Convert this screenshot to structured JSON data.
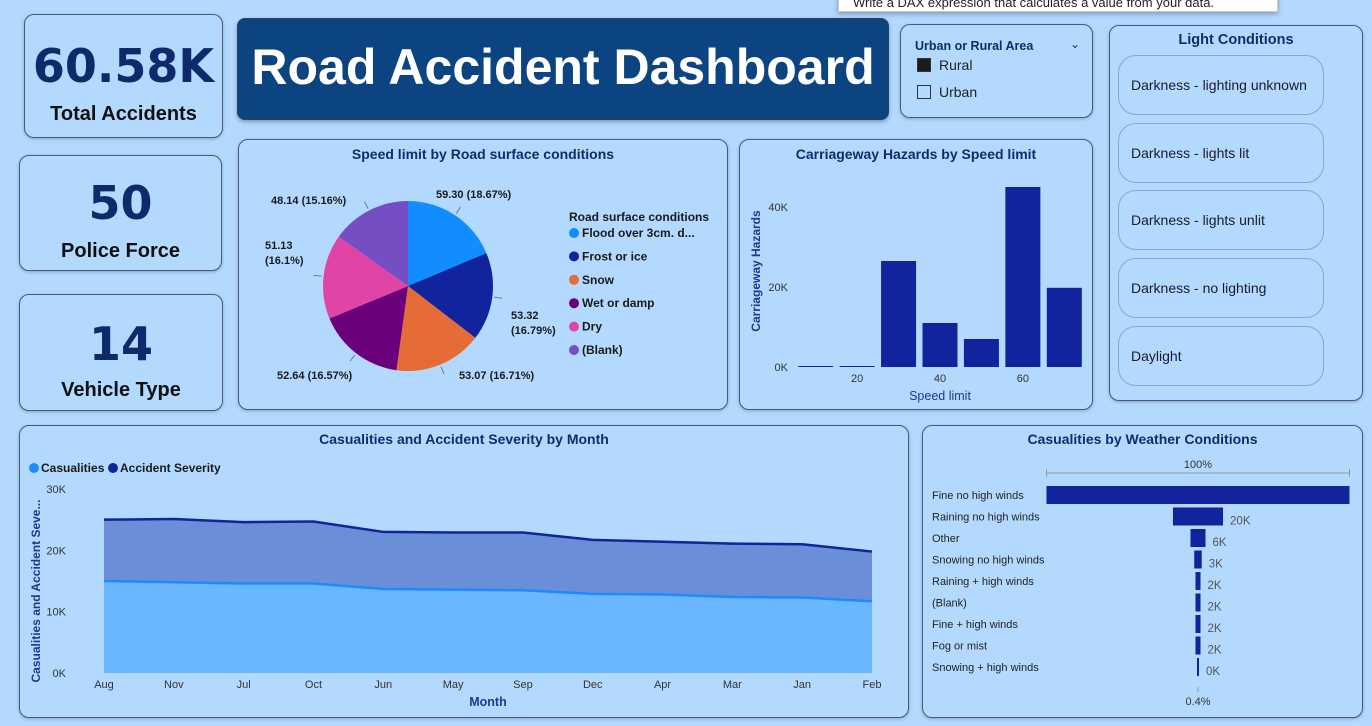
{
  "tooltip": "Write a DAX expression that calculates a value from your data.",
  "title": "Road Accident Dashboard",
  "kpis": [
    {
      "value": "60.58K",
      "label": "Total Accidents"
    },
    {
      "value": "50",
      "label": "Police Force"
    },
    {
      "value": "14",
      "label": "Vehicle Type"
    }
  ],
  "area_slicer": {
    "title": "Urban or Rural Area",
    "items": [
      {
        "label": "Rural",
        "checked": true
      },
      {
        "label": "Urban",
        "checked": false
      }
    ]
  },
  "light_conditions": {
    "title": "Light Conditions",
    "items": [
      "Darkness - lighting unknown",
      "Darkness - lights lit",
      "Darkness - lights unlit",
      "Darkness - no lighting",
      "Daylight"
    ]
  },
  "colors": {
    "navy": "#12239e",
    "pie": [
      "#118dff",
      "#12239e",
      "#e66c37",
      "#6b007b",
      "#e044a7",
      "#744ec2"
    ],
    "casualties_area": "#6ab7ff",
    "casualties_line": "#1a8cff",
    "severity_area": "#6a8ed8",
    "severity_line": "#12239e"
  },
  "chart_data": [
    {
      "type": "pie",
      "title": "Speed limit by Road surface conditions",
      "legend_title": "Road surface conditions",
      "legend": "right",
      "slices": [
        {
          "name": "Flood over 3cm. d...",
          "value": 59.3,
          "pct": "18.67%",
          "label": "59.30 (18.67%)"
        },
        {
          "name": "Frost or ice",
          "value": 53.32,
          "pct": "16.79%",
          "label": "53.32 (16.79%)"
        },
        {
          "name": "Snow",
          "value": 53.07,
          "pct": "16.71%",
          "label": "53.07 (16.71%)"
        },
        {
          "name": "Wet or damp",
          "value": 52.64,
          "pct": "16.57%",
          "label": "52.64 (16.57%)"
        },
        {
          "name": "Dry",
          "value": 51.13,
          "pct": "16.1%",
          "label": "51.13 (16.1%)"
        },
        {
          "name": "(Blank)",
          "value": 48.14,
          "pct": "15.16%",
          "label": "48.14 (15.16%)"
        }
      ]
    },
    {
      "type": "bar",
      "title": "Carriageway Hazards by Speed limit",
      "xlabel": "Speed limit",
      "ylabel": "Carriageway Hazards",
      "x": [
        10,
        20,
        30,
        40,
        50,
        60,
        70
      ],
      "values": [
        100,
        200,
        26500,
        11000,
        7000,
        45000,
        19800
      ],
      "xticks": [
        20,
        40,
        60
      ],
      "yticks": [
        {
          "v": 0,
          "label": "0K"
        },
        {
          "v": 20000,
          "label": "20K"
        },
        {
          "v": 40000,
          "label": "40K"
        }
      ],
      "ylim": [
        0,
        48000
      ],
      "xlim": [
        5,
        75
      ]
    },
    {
      "type": "area",
      "title": "Casualities and Accident Severity by Month",
      "xlabel": "Month",
      "ylabel": "Casualities and Accident Seve...",
      "legend": "top-left",
      "categories": [
        "Aug",
        "Nov",
        "Jul",
        "Oct",
        "Jun",
        "May",
        "Sep",
        "Dec",
        "Apr",
        "Mar",
        "Jan",
        "Feb"
      ],
      "series": [
        {
          "name": "Casualities",
          "values": [
            15000,
            14800,
            14600,
            14600,
            13700,
            13600,
            13500,
            12900,
            12800,
            12400,
            12300,
            11700
          ]
        },
        {
          "name": "Accident Severity",
          "values": [
            25000,
            25100,
            24600,
            24700,
            23000,
            22900,
            22900,
            21700,
            21400,
            21100,
            21000,
            19800
          ]
        }
      ],
      "yticks": [
        {
          "v": 0,
          "label": "0K"
        },
        {
          "v": 10000,
          "label": "10K"
        },
        {
          "v": 20000,
          "label": "20K"
        },
        {
          "v": 30000,
          "label": "30K"
        }
      ],
      "ylim": [
        0,
        30000
      ]
    },
    {
      "type": "bar",
      "orientation": "funnel",
      "title": "Casualities by Weather Conditions",
      "top_label": "100%",
      "bottom_label": "0.4%",
      "categories": [
        "Fine no high winds",
        "Raining no high winds",
        "Other",
        "Snowing no high winds",
        "Raining + high winds",
        "(Blank)",
        "Fine + high winds",
        "Fog or mist",
        "Snowing + high winds"
      ],
      "values": [
        121000,
        20000,
        6000,
        3000,
        2000,
        2000,
        2000,
        2000,
        400
      ],
      "value_labels": [
        "",
        "20K",
        "6K",
        "3K",
        "2K",
        "2K",
        "2K",
        "2K",
        "0K"
      ]
    }
  ]
}
